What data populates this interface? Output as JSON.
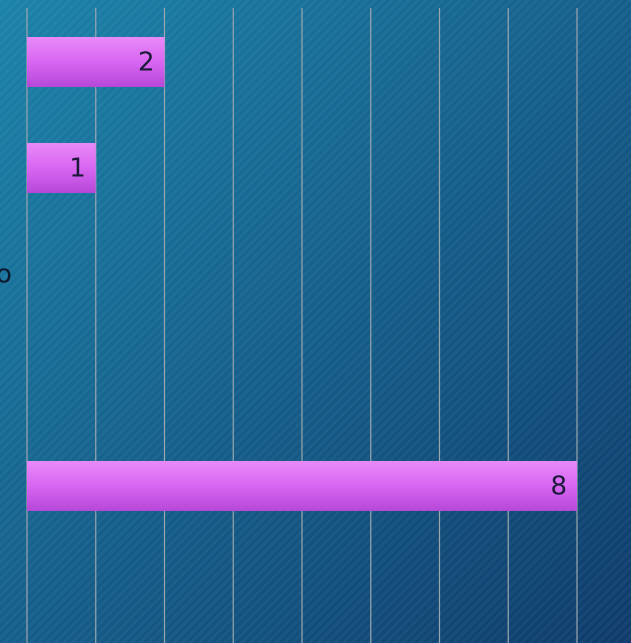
{
  "chart_data": {
    "type": "bar",
    "orientation": "horizontal",
    "axis_label": "o",
    "categories": [
      null,
      null,
      null,
      null,
      null,
      null
    ],
    "values": [
      2,
      1,
      null,
      null,
      8,
      null
    ],
    "color": "#d866f2",
    "xlim": [
      0,
      8
    ],
    "xticks": [
      0,
      1,
      2,
      3,
      4,
      5,
      6,
      7,
      8
    ],
    "grid": true
  }
}
